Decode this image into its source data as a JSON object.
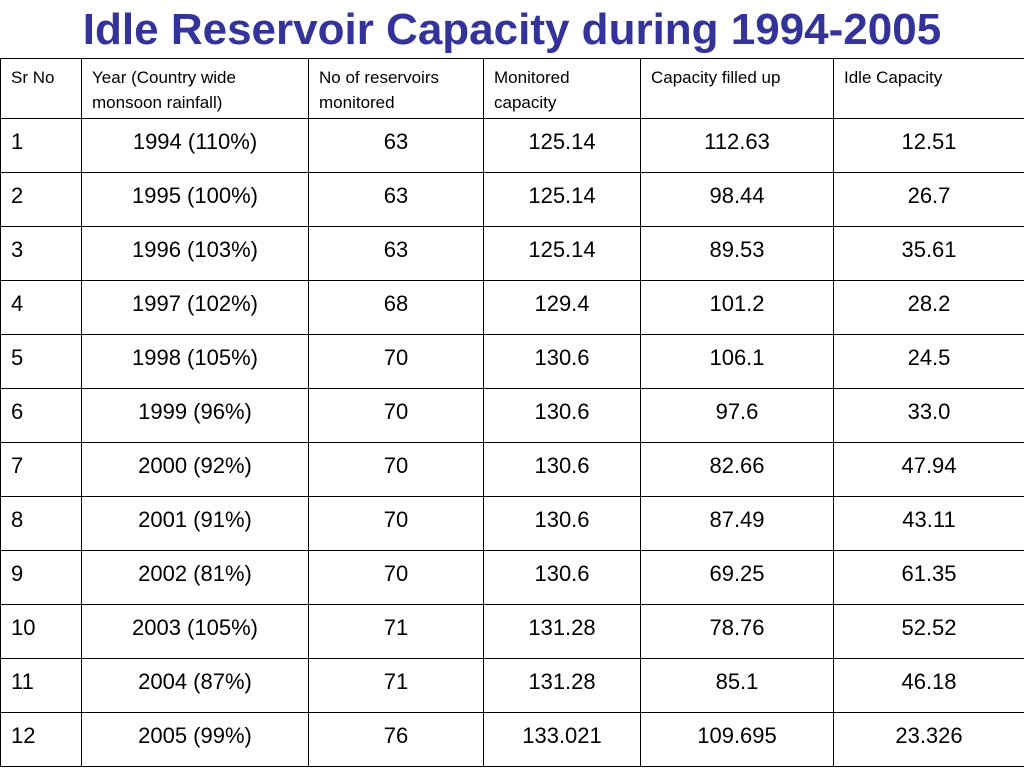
{
  "title": "Idle Reservoir Capacity during 1994-2005",
  "table": {
    "headers": [
      "Sr No",
      "Year (Country wide monsoon rainfall)",
      "No of reservoirs monitored",
      "Monitored capacity",
      "Capacity filled up",
      "Idle Capacity"
    ],
    "rows": [
      [
        "1",
        "1994 (110%)",
        "63",
        "125.14",
        "112.63",
        "12.51"
      ],
      [
        "2",
        "1995 (100%)",
        "63",
        "125.14",
        "98.44",
        "26.7"
      ],
      [
        "3",
        "1996 (103%)",
        "63",
        "125.14",
        "89.53",
        "35.61"
      ],
      [
        "4",
        "1997 (102%)",
        "68",
        "129.4",
        "101.2",
        "28.2"
      ],
      [
        "5",
        "1998 (105%)",
        "70",
        "130.6",
        "106.1",
        "24.5"
      ],
      [
        "6",
        "1999 (96%)",
        "70",
        "130.6",
        "97.6",
        "33.0"
      ],
      [
        "7",
        "2000 (92%)",
        "70",
        "130.6",
        "82.66",
        "47.94"
      ],
      [
        "8",
        "2001 (91%)",
        "70",
        "130.6",
        "87.49",
        "43.11"
      ],
      [
        "9",
        "2002 (81%)",
        "70",
        "130.6",
        "69.25",
        "61.35"
      ],
      [
        "10",
        "2003 (105%)",
        "71",
        "131.28",
        "78.76",
        "52.52"
      ],
      [
        "11",
        "2004 (87%)",
        "71",
        "131.28",
        "85.1",
        "46.18"
      ],
      [
        "12",
        "2005 (99%)",
        "76",
        "133.021",
        "109.695",
        "23.326"
      ]
    ]
  },
  "colors": {
    "title": "#333399",
    "text": "#000000",
    "border": "#000000",
    "background": "#ffffff"
  }
}
